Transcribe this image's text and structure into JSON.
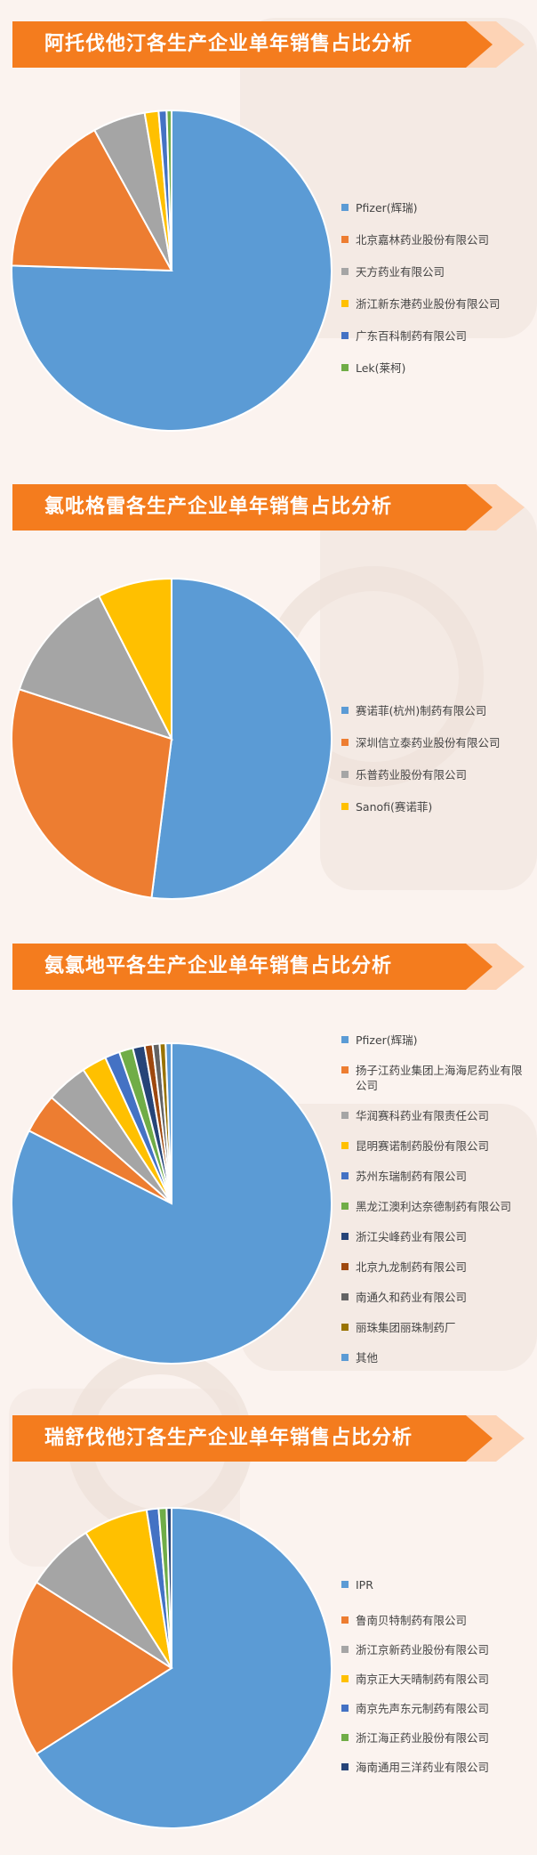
{
  "chart_data": [
    {
      "type": "pie",
      "title": "阿托伐他汀各生产企业单年销售占比分析",
      "slices": [
        {
          "name": "Pfizer(辉瑞)",
          "value": 75.5,
          "color": "#5b9bd5"
        },
        {
          "name": "北京嘉林药业股份有限公司",
          "value": 16.5,
          "color": "#ed7d31"
        },
        {
          "name": "天方药业有限公司",
          "value": 5.3,
          "color": "#a5a5a5"
        },
        {
          "name": "浙江新东港药业股份有限公司",
          "value": 1.4,
          "color": "#ffc000"
        },
        {
          "name": "广东百科制药有限公司",
          "value": 0.8,
          "color": "#4472c4"
        },
        {
          "name": "Lek(莱柯)",
          "value": 0.5,
          "color": "#70ad47"
        }
      ]
    },
    {
      "type": "pie",
      "title": "氯吡格雷各生产企业单年销售占比分析",
      "slices": [
        {
          "name": "赛诺菲(杭州)制药有限公司",
          "value": 52.0,
          "color": "#5b9bd5"
        },
        {
          "name": "深圳信立泰药业股份有限公司",
          "value": 28.0,
          "color": "#ed7d31"
        },
        {
          "name": "乐普药业股份有限公司",
          "value": 12.5,
          "color": "#a5a5a5"
        },
        {
          "name": "Sanofi(赛诺菲)",
          "value": 7.5,
          "color": "#ffc000"
        }
      ]
    },
    {
      "type": "pie",
      "title": "氨氯地平各生产企业单年销售占比分析",
      "slices": [
        {
          "name": "Pfizer(辉瑞)",
          "value": 82.5,
          "color": "#5b9bd5"
        },
        {
          "name": "扬子江药业集团上海海尼药业有限公司",
          "value": 4.0,
          "color": "#ed7d31"
        },
        {
          "name": "华润赛科药业有限责任公司",
          "value": 4.2,
          "color": "#a5a5a5"
        },
        {
          "name": "昆明赛诺制药股份有限公司",
          "value": 2.5,
          "color": "#ffc000"
        },
        {
          "name": "苏州东瑞制药有限公司",
          "value": 1.5,
          "color": "#4472c4"
        },
        {
          "name": "黑龙江澳利达奈德制药有限公司",
          "value": 1.4,
          "color": "#70ad47"
        },
        {
          "name": "浙江尖峰药业有限公司",
          "value": 1.2,
          "color": "#264478"
        },
        {
          "name": "北京九龙制药有限公司",
          "value": 0.8,
          "color": "#9e480e"
        },
        {
          "name": "南通久和药业有限公司",
          "value": 0.7,
          "color": "#636363"
        },
        {
          "name": "丽珠集团丽珠制药厂",
          "value": 0.6,
          "color": "#997300"
        },
        {
          "name": "其他",
          "value": 0.6,
          "color": "#5b9bd5"
        }
      ]
    },
    {
      "type": "pie",
      "title": "瑞舒伐他汀各生产企业单年销售占比分析",
      "slices": [
        {
          "name": "IPR",
          "value": 66.0,
          "color": "#5b9bd5"
        },
        {
          "name": "鲁南贝特制药有限公司",
          "value": 18.0,
          "color": "#ed7d31"
        },
        {
          "name": "浙江京新药业股份有限公司",
          "value": 7.0,
          "color": "#a5a5a5"
        },
        {
          "name": "南京正大天晴制药有限公司",
          "value": 6.5,
          "color": "#ffc000"
        },
        {
          "name": "南京先声东元制药有限公司",
          "value": 1.2,
          "color": "#4472c4"
        },
        {
          "name": "浙江海正药业股份有限公司",
          "value": 0.8,
          "color": "#70ad47"
        },
        {
          "name": "海南通用三洋药业有限公司",
          "value": 0.5,
          "color": "#264478"
        }
      ]
    }
  ]
}
